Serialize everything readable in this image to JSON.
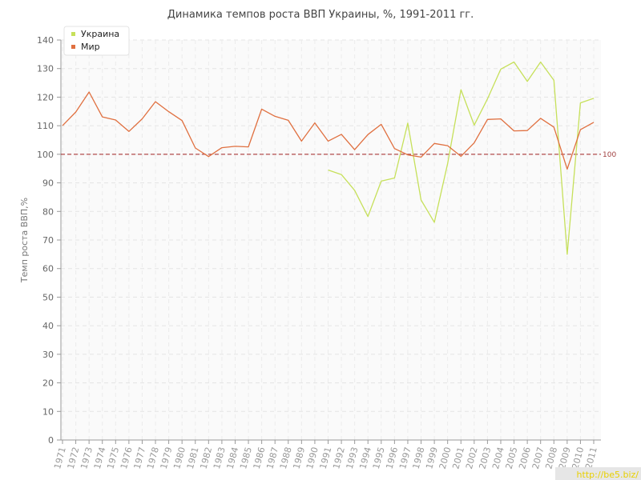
{
  "chart_data": {
    "type": "line",
    "title": "Динамика темпов роста ВВП Украины, %, 1991-2011 гг.",
    "ylabel": "Темп роста ВВП,%",
    "xlabel": "",
    "ylim": [
      0,
      140
    ],
    "yticks": [
      0,
      10,
      20,
      30,
      40,
      50,
      60,
      70,
      80,
      90,
      100,
      110,
      120,
      130,
      140
    ],
    "grid": true,
    "legend_position": "top-left",
    "x": [
      1971,
      1972,
      1973,
      1974,
      1975,
      1976,
      1977,
      1978,
      1979,
      1980,
      1981,
      1982,
      1983,
      1984,
      1985,
      1986,
      1987,
      1988,
      1989,
      1990,
      1991,
      1992,
      1993,
      1994,
      1995,
      1996,
      1997,
      1998,
      1999,
      2000,
      2001,
      2002,
      2003,
      2004,
      2005,
      2006,
      2007,
      2008,
      2009,
      2010,
      2011
    ],
    "series": [
      {
        "name": "Украина",
        "color": "#c6e05a",
        "values": [
          null,
          null,
          null,
          null,
          null,
          null,
          null,
          null,
          null,
          null,
          null,
          null,
          null,
          null,
          null,
          null,
          null,
          null,
          null,
          null,
          94.5,
          92.9,
          87.4,
          78.2,
          90.6,
          91.7,
          110.9,
          84.0,
          76.2,
          96.8,
          122.6,
          110.2,
          119.4,
          129.8,
          132.3,
          125.5,
          132.3,
          125.9,
          65.0,
          118.0,
          119.6
        ]
      },
      {
        "name": "Мир",
        "color": "#e07040",
        "values": [
          110.0,
          114.8,
          121.8,
          113.1,
          112.0,
          108.0,
          112.4,
          118.4,
          114.9,
          111.8,
          102.2,
          99.2,
          102.3,
          102.8,
          102.6,
          115.8,
          113.3,
          111.9,
          104.6,
          111.0,
          104.6,
          107.0,
          101.6,
          106.9,
          110.5,
          102.0,
          99.8,
          99.0,
          103.8,
          103.0,
          99.3,
          104.0,
          112.2,
          112.4,
          108.2,
          108.3,
          112.6,
          109.5,
          94.8,
          108.6,
          111.2
        ]
      }
    ],
    "reference_line": {
      "value": 100,
      "label": "100",
      "color": "#a02020"
    }
  },
  "watermark": "http://be5.biz/"
}
